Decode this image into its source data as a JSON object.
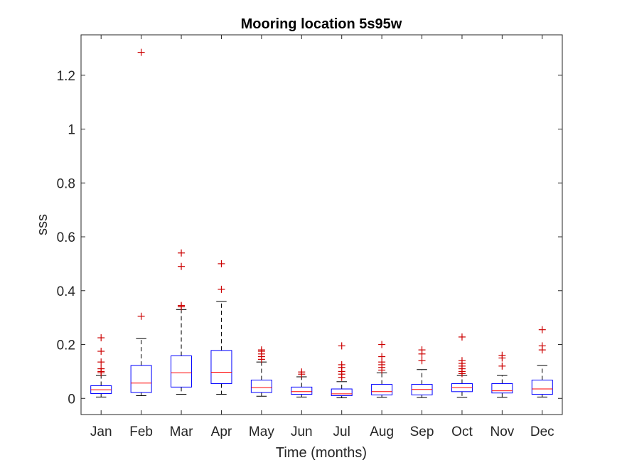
{
  "chart_data": {
    "type": "box",
    "title": "Mooring location 5s95w",
    "xlabel": "Time (months)",
    "ylabel": "sss",
    "ylim": [
      -0.06,
      1.35
    ],
    "yticks": [
      0,
      0.2,
      0.4,
      0.6,
      0.8,
      1,
      1.2
    ],
    "ytick_labels": [
      "0",
      "0.2",
      "0.4",
      "0.6",
      "0.8",
      "1",
      "1.2"
    ],
    "grid": false,
    "colors": {
      "box": "#0000ff",
      "median": "#ff0000",
      "whisker": "#000000",
      "outlier": "#cc0000",
      "axis": "#262626"
    },
    "categories": [
      "Jan",
      "Feb",
      "Mar",
      "Apr",
      "May",
      "Jun",
      "Jul",
      "Aug",
      "Sep",
      "Oct",
      "Nov",
      "Dec"
    ],
    "boxes": [
      {
        "category": "Jan",
        "whisker_low": 0.005,
        "q1": 0.018,
        "median": 0.032,
        "q3": 0.047,
        "whisker_high": 0.085,
        "outliers": [
          0.095,
          0.1,
          0.11,
          0.135,
          0.175,
          0.225
        ]
      },
      {
        "category": "Feb",
        "whisker_low": 0.01,
        "q1": 0.022,
        "median": 0.057,
        "q3": 0.122,
        "whisker_high": 0.222,
        "outliers": [
          0.305,
          1.285
        ]
      },
      {
        "category": "Mar",
        "whisker_low": 0.015,
        "q1": 0.042,
        "median": 0.095,
        "q3": 0.158,
        "whisker_high": 0.33,
        "outliers": [
          0.34,
          0.345,
          0.49,
          0.54
        ]
      },
      {
        "category": "Apr",
        "whisker_low": 0.015,
        "q1": 0.055,
        "median": 0.097,
        "q3": 0.178,
        "whisker_high": 0.36,
        "outliers": [
          0.405,
          0.5
        ]
      },
      {
        "category": "May",
        "whisker_low": 0.008,
        "q1": 0.022,
        "median": 0.04,
        "q3": 0.068,
        "whisker_high": 0.135,
        "outliers": [
          0.145,
          0.155,
          0.165,
          0.175,
          0.18
        ]
      },
      {
        "category": "Jun",
        "whisker_low": 0.005,
        "q1": 0.015,
        "median": 0.025,
        "q3": 0.042,
        "whisker_high": 0.08,
        "outliers": [
          0.09,
          0.098
        ]
      },
      {
        "category": "Jul",
        "whisker_low": 0.002,
        "q1": 0.01,
        "median": 0.017,
        "q3": 0.035,
        "whisker_high": 0.062,
        "outliers": [
          0.078,
          0.09,
          0.1,
          0.115,
          0.125,
          0.195
        ]
      },
      {
        "category": "Aug",
        "whisker_low": 0.004,
        "q1": 0.013,
        "median": 0.025,
        "q3": 0.052,
        "whisker_high": 0.095,
        "outliers": [
          0.105,
          0.115,
          0.125,
          0.135,
          0.155,
          0.2
        ]
      },
      {
        "category": "Sep",
        "whisker_low": 0.003,
        "q1": 0.013,
        "median": 0.033,
        "q3": 0.052,
        "whisker_high": 0.107,
        "outliers": [
          0.14,
          0.165,
          0.18
        ]
      },
      {
        "category": "Oct",
        "whisker_low": 0.004,
        "q1": 0.025,
        "median": 0.04,
        "q3": 0.055,
        "whisker_high": 0.085,
        "outliers": [
          0.092,
          0.1,
          0.11,
          0.12,
          0.13,
          0.14,
          0.228
        ]
      },
      {
        "category": "Nov",
        "whisker_low": 0.004,
        "q1": 0.02,
        "median": 0.028,
        "q3": 0.055,
        "whisker_high": 0.085,
        "outliers": [
          0.12,
          0.15,
          0.16
        ]
      },
      {
        "category": "Dec",
        "whisker_low": 0.005,
        "q1": 0.015,
        "median": 0.035,
        "q3": 0.068,
        "whisker_high": 0.122,
        "outliers": [
          0.18,
          0.195,
          0.255
        ]
      }
    ]
  }
}
